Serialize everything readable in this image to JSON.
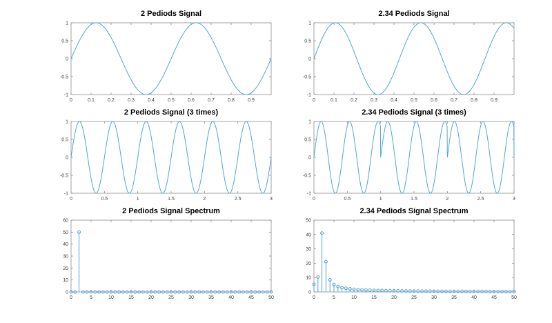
{
  "colors": {
    "background": "#ffffff",
    "line": "#4fa5d5",
    "axis": "#8c8c8c",
    "tick_label": "#3c3c3c",
    "title": "#000000"
  },
  "chart_data": [
    {
      "name": "signal-2-periods",
      "type": "line",
      "title": "2 Pediods Signal",
      "signal": {
        "waveform": "sine",
        "periods": 2,
        "amplitude": 1,
        "repeat": null
      },
      "x_range": [
        0,
        1
      ],
      "y_range": [
        -1,
        1
      ],
      "x_ticks": [
        0,
        0.1,
        0.2,
        0.3,
        0.4,
        0.5,
        0.6,
        0.7,
        0.8,
        0.9
      ],
      "y_ticks": [
        -1,
        -0.5,
        0,
        0.5,
        1
      ],
      "grid": false,
      "legend": null
    },
    {
      "name": "signal-2p34-periods",
      "type": "line",
      "title": "2.34 Pediods Signal",
      "signal": {
        "waveform": "sine",
        "periods": 2.34,
        "amplitude": 1,
        "repeat": null
      },
      "x_range": [
        0,
        1
      ],
      "y_range": [
        -1,
        1
      ],
      "x_ticks": [
        0,
        0.1,
        0.2,
        0.3,
        0.4,
        0.5,
        0.6,
        0.7,
        0.8,
        0.9
      ],
      "y_ticks": [
        -1,
        -0.5,
        0,
        0.5,
        1
      ],
      "grid": false,
      "legend": null
    },
    {
      "name": "signal-2-periods-3-times",
      "type": "line",
      "title": "2 Pediods Signal (3 times)",
      "signal": {
        "waveform": "sine",
        "periods": 2,
        "amplitude": 1,
        "repeat": 1
      },
      "x_range": [
        0,
        3
      ],
      "y_range": [
        -1,
        1
      ],
      "x_ticks": [
        0,
        0.5,
        1,
        1.5,
        2,
        2.5,
        3
      ],
      "y_ticks": [
        -1,
        -0.5,
        0,
        0.5,
        1
      ],
      "grid": false,
      "legend": null
    },
    {
      "name": "signal-2p34-periods-3-times",
      "type": "line",
      "title": "2.34 Pediods Signal (3 times)",
      "signal": {
        "waveform": "sine",
        "periods": 2.34,
        "amplitude": 1,
        "repeat": 1
      },
      "x_range": [
        0,
        3
      ],
      "y_range": [
        -1,
        1
      ],
      "x_ticks": [
        0,
        0.5,
        1,
        1.5,
        2,
        2.5,
        3
      ],
      "y_ticks": [
        -1,
        -0.5,
        0,
        0.5,
        1
      ],
      "grid": false,
      "legend": null
    },
    {
      "name": "spectrum-2-periods",
      "type": "stem",
      "title": "2 Pediods Signal Spectrum",
      "x_start": 0,
      "x_step": 1,
      "values": [
        0,
        0,
        50,
        0,
        0,
        0,
        0,
        0,
        0,
        0,
        0,
        0,
        0,
        0,
        0,
        0,
        0,
        0,
        0,
        0,
        0,
        0,
        0,
        0,
        0,
        0,
        0,
        0,
        0,
        0,
        0,
        0,
        0,
        0,
        0,
        0,
        0,
        0,
        0,
        0,
        0,
        0,
        0,
        0,
        0,
        0,
        0,
        0,
        0,
        0,
        0
      ],
      "x_range": [
        0,
        50
      ],
      "y_range": [
        0,
        60
      ],
      "x_ticks": [
        0,
        5,
        10,
        15,
        20,
        25,
        30,
        35,
        40,
        45,
        50
      ],
      "y_ticks": [
        0,
        10,
        20,
        30,
        40,
        50,
        60
      ],
      "grid": false,
      "legend": null
    },
    {
      "name": "spectrum-2p34-periods",
      "type": "stem",
      "title": "2.34 Pediods Signal Spectrum",
      "x_start": 0,
      "x_step": 1,
      "values": [
        5.3,
        10.4,
        41.0,
        21.1,
        8.4,
        5.2,
        3.8,
        3.0,
        2.5,
        2.1,
        1.8,
        1.6,
        1.45,
        1.3,
        1.2,
        1.1,
        1.0,
        0.95,
        0.9,
        0.85,
        0.8,
        0.75,
        0.7,
        0.67,
        0.64,
        0.61,
        0.59,
        0.56,
        0.54,
        0.52,
        0.5,
        0.49,
        0.47,
        0.45,
        0.44,
        0.42,
        0.41,
        0.4,
        0.39,
        0.38,
        0.37,
        0.36,
        0.35,
        0.34,
        0.33,
        0.32,
        0.32,
        0.31,
        0.3,
        0.3,
        0.29
      ],
      "x_range": [
        0,
        50
      ],
      "y_range": [
        0,
        50
      ],
      "x_ticks": [
        0,
        5,
        10,
        15,
        20,
        25,
        30,
        35,
        40,
        45,
        50
      ],
      "y_ticks": [
        0,
        10,
        20,
        30,
        40,
        50
      ],
      "grid": false,
      "legend": null
    }
  ]
}
